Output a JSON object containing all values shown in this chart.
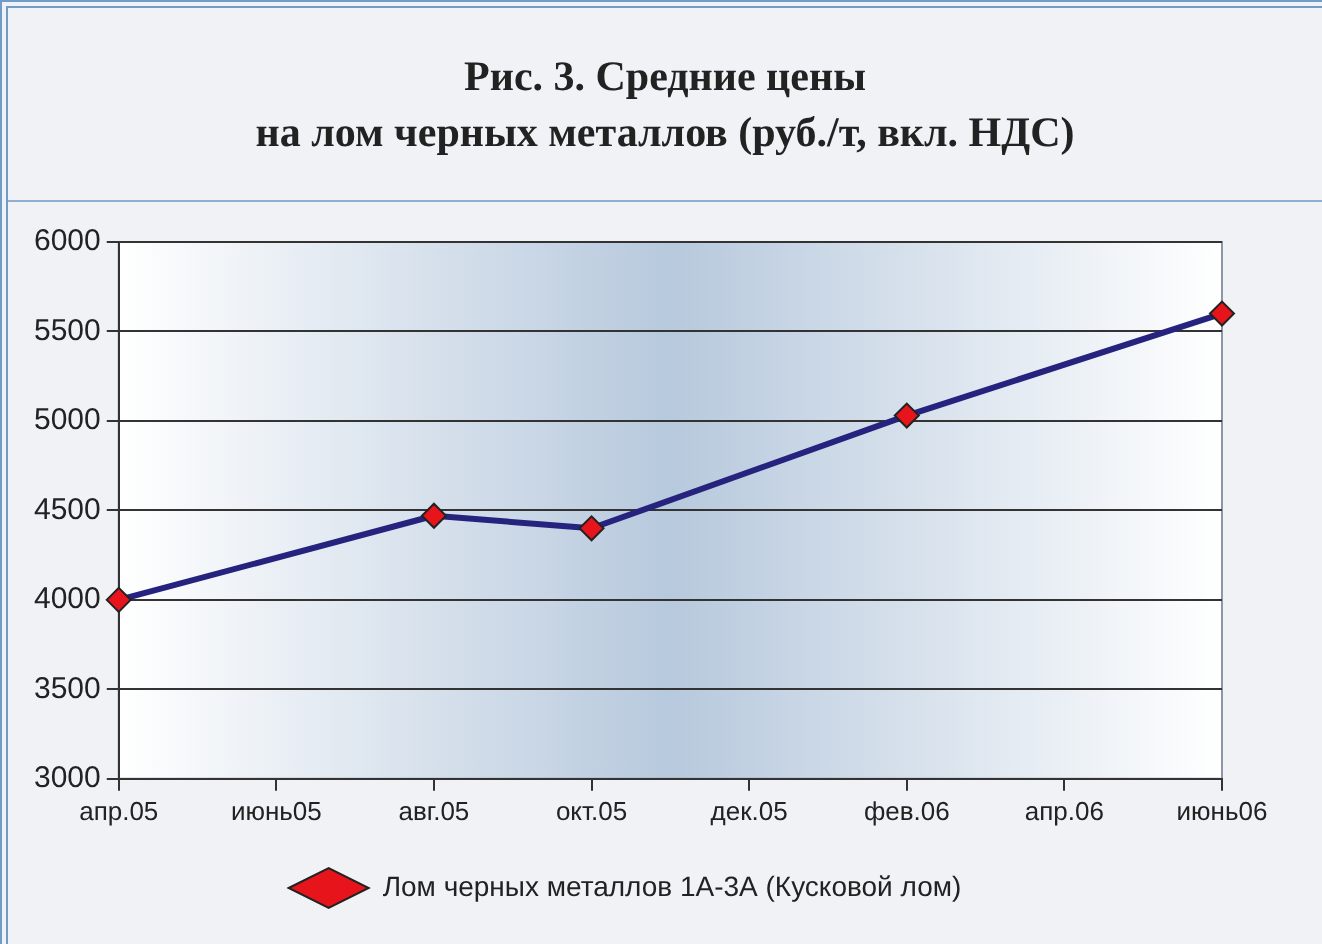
{
  "chart_data": {
    "type": "line",
    "title": "Рис. 3. Средние цены\nна лом черных металлов (руб./т, вкл. НДС)",
    "categories": [
      "апр.05",
      "июнь05",
      "авг.05",
      "окт.05",
      "дек.05",
      "фев.06",
      "апр.06",
      "июнь06"
    ],
    "series": [
      {
        "name": "Лом черных металлов 1А-3А (Кусковой лом)",
        "color": "#26237f",
        "values": [
          4000,
          null,
          4470,
          4400,
          null,
          5030,
          null,
          5600
        ]
      }
    ],
    "ylim": [
      3000,
      6000
    ],
    "yticks": [
      3000,
      3500,
      4000,
      4500,
      5000,
      5500,
      6000
    ],
    "grid": "y",
    "legend": "bottom",
    "marker": "diamond",
    "line_style": "solid"
  }
}
